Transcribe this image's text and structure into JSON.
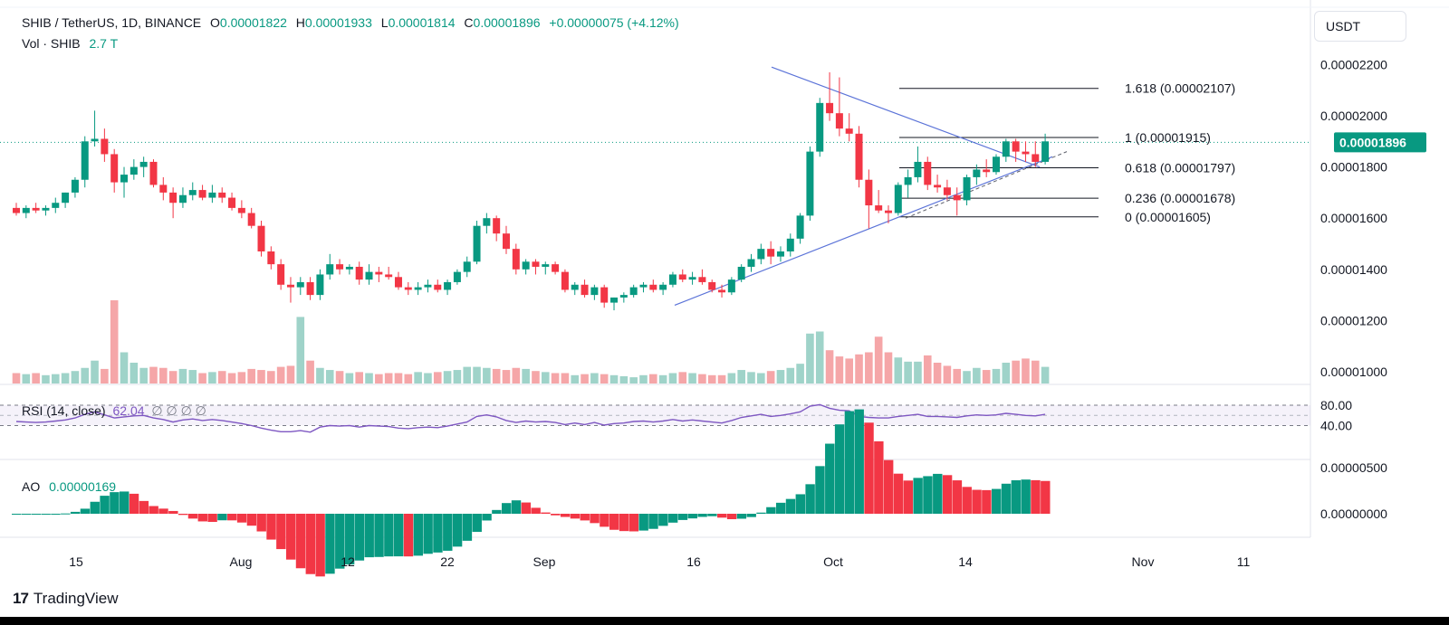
{
  "header": {
    "symbol": "SHIB / TetherUS, 1D, BINANCE",
    "o_label": "O",
    "o_value": "0.00001822",
    "h_label": "H",
    "h_value": "0.00001933",
    "l_label": "L",
    "l_value": "0.00001814",
    "c_label": "C",
    "c_value": "0.00001896",
    "change": "+0.00000075 (+4.12%)"
  },
  "volume_legend": {
    "label": "Vol · SHIB",
    "value": "2.7 T"
  },
  "rsi_legend": {
    "label": "RSI (14, close)",
    "value": "62.04",
    "extras": "∅ ∅ ∅ ∅"
  },
  "ao_legend": {
    "label": "AO",
    "value": "0.00000169"
  },
  "currency_button": "USDT",
  "brand": {
    "logo": "17",
    "name": "TradingView"
  },
  "colors": {
    "up": "#089981",
    "down": "#f23645",
    "up_vol": "#9fd3c9",
    "down_vol": "#f5a6a8",
    "rsi": "#7e57c2",
    "trend": "#5b73d8"
  },
  "chart_data": {
    "type": "candlestick",
    "symbol": "SHIB/USDT",
    "interval": "1D",
    "price_axis": {
      "ticks": [
        "0.00002200",
        "0.00002000",
        "0.00001800",
        "0.00001600",
        "0.00001400",
        "0.00001200",
        "0.00001000"
      ],
      "range": [
        9.5e-06,
        2.27e-05
      ]
    },
    "rsi_axis": {
      "ticks": [
        "80.00",
        "40.00"
      ]
    },
    "ao_axis": {
      "ticks": [
        "0.00000500",
        "0.00000000"
      ]
    },
    "time_axis": [
      "15",
      "Aug",
      "12",
      "22",
      "Sep",
      "16",
      "Oct",
      "14",
      "Nov",
      "11"
    ],
    "last_price_label": "0.00001896",
    "fib_levels": [
      {
        "label": "1.618 (0.00002107)",
        "price": 2.107e-05
      },
      {
        "label": "1 (0.00001915)",
        "price": 1.915e-05
      },
      {
        "label": "0.618 (0.00001797)",
        "price": 1.797e-05
      },
      {
        "label": "0.236 (0.00001678)",
        "price": 1.678e-05
      },
      {
        "label": "0 (0.00001605)",
        "price": 1.605e-05
      }
    ],
    "candles": [
      [
        1.64,
        1.66,
        1.61,
        1.62
      ],
      [
        1.62,
        1.65,
        1.6,
        1.64
      ],
      [
        1.64,
        1.66,
        1.62,
        1.63
      ],
      [
        1.63,
        1.65,
        1.61,
        1.64
      ],
      [
        1.64,
        1.68,
        1.62,
        1.66
      ],
      [
        1.66,
        1.7,
        1.64,
        1.7
      ],
      [
        1.7,
        1.76,
        1.68,
        1.75
      ],
      [
        1.75,
        1.92,
        1.72,
        1.9
      ],
      [
        1.9,
        2.02,
        1.88,
        1.91
      ],
      [
        1.91,
        1.95,
        1.82,
        1.85
      ],
      [
        1.85,
        1.87,
        1.7,
        1.74
      ],
      [
        1.74,
        1.8,
        1.68,
        1.77
      ],
      [
        1.77,
        1.83,
        1.75,
        1.8
      ],
      [
        1.8,
        1.84,
        1.76,
        1.82
      ],
      [
        1.82,
        1.83,
        1.72,
        1.73
      ],
      [
        1.73,
        1.76,
        1.67,
        1.7
      ],
      [
        1.7,
        1.72,
        1.6,
        1.66
      ],
      [
        1.66,
        1.72,
        1.64,
        1.69
      ],
      [
        1.69,
        1.74,
        1.67,
        1.71
      ],
      [
        1.71,
        1.73,
        1.67,
        1.68
      ],
      [
        1.68,
        1.73,
        1.66,
        1.7
      ],
      [
        1.7,
        1.72,
        1.66,
        1.68
      ],
      [
        1.68,
        1.7,
        1.63,
        1.64
      ],
      [
        1.64,
        1.67,
        1.6,
        1.62
      ],
      [
        1.62,
        1.64,
        1.56,
        1.57
      ],
      [
        1.57,
        1.59,
        1.45,
        1.47
      ],
      [
        1.47,
        1.49,
        1.4,
        1.42
      ],
      [
        1.42,
        1.44,
        1.32,
        1.34
      ],
      [
        1.34,
        1.37,
        1.27,
        1.33
      ],
      [
        1.33,
        1.37,
        1.3,
        1.35
      ],
      [
        1.35,
        1.37,
        1.28,
        1.3
      ],
      [
        1.3,
        1.4,
        1.28,
        1.38
      ],
      [
        1.38,
        1.46,
        1.36,
        1.42
      ],
      [
        1.42,
        1.44,
        1.38,
        1.4
      ],
      [
        1.4,
        1.42,
        1.38,
        1.41
      ],
      [
        1.41,
        1.43,
        1.34,
        1.36
      ],
      [
        1.36,
        1.42,
        1.34,
        1.39
      ],
      [
        1.39,
        1.41,
        1.35,
        1.38
      ],
      [
        1.38,
        1.41,
        1.36,
        1.37
      ],
      [
        1.37,
        1.39,
        1.32,
        1.33
      ],
      [
        1.33,
        1.35,
        1.3,
        1.32
      ],
      [
        1.32,
        1.35,
        1.3,
        1.33
      ],
      [
        1.33,
        1.36,
        1.31,
        1.34
      ],
      [
        1.34,
        1.36,
        1.31,
        1.32
      ],
      [
        1.32,
        1.36,
        1.3,
        1.35
      ],
      [
        1.35,
        1.4,
        1.34,
        1.39
      ],
      [
        1.39,
        1.45,
        1.37,
        1.43
      ],
      [
        1.43,
        1.59,
        1.42,
        1.57
      ],
      [
        1.57,
        1.62,
        1.54,
        1.6
      ],
      [
        1.6,
        1.61,
        1.51,
        1.54
      ],
      [
        1.54,
        1.57,
        1.46,
        1.48
      ],
      [
        1.48,
        1.5,
        1.38,
        1.4
      ],
      [
        1.4,
        1.44,
        1.38,
        1.43
      ],
      [
        1.43,
        1.44,
        1.38,
        1.41
      ],
      [
        1.41,
        1.43,
        1.38,
        1.42
      ],
      [
        1.42,
        1.43,
        1.38,
        1.39
      ],
      [
        1.39,
        1.4,
        1.31,
        1.32
      ],
      [
        1.32,
        1.35,
        1.3,
        1.34
      ],
      [
        1.34,
        1.36,
        1.29,
        1.3
      ],
      [
        1.3,
        1.34,
        1.28,
        1.33
      ],
      [
        1.33,
        1.34,
        1.25,
        1.27
      ],
      [
        1.27,
        1.29,
        1.24,
        1.29
      ],
      [
        1.29,
        1.31,
        1.27,
        1.3
      ],
      [
        1.3,
        1.34,
        1.29,
        1.33
      ],
      [
        1.33,
        1.35,
        1.31,
        1.34
      ],
      [
        1.34,
        1.36,
        1.31,
        1.32
      ],
      [
        1.32,
        1.35,
        1.3,
        1.34
      ],
      [
        1.34,
        1.39,
        1.33,
        1.38
      ],
      [
        1.38,
        1.4,
        1.35,
        1.36
      ],
      [
        1.36,
        1.39,
        1.34,
        1.37
      ],
      [
        1.37,
        1.4,
        1.34,
        1.35
      ],
      [
        1.35,
        1.36,
        1.31,
        1.32
      ],
      [
        1.32,
        1.34,
        1.29,
        1.31
      ],
      [
        1.31,
        1.37,
        1.3,
        1.36
      ],
      [
        1.36,
        1.42,
        1.35,
        1.41
      ],
      [
        1.41,
        1.46,
        1.39,
        1.44
      ],
      [
        1.44,
        1.5,
        1.42,
        1.48
      ],
      [
        1.48,
        1.51,
        1.42,
        1.45
      ],
      [
        1.45,
        1.49,
        1.43,
        1.47
      ],
      [
        1.47,
        1.54,
        1.45,
        1.52
      ],
      [
        1.52,
        1.62,
        1.5,
        1.61
      ],
      [
        1.61,
        1.88,
        1.59,
        1.86
      ],
      [
        1.86,
        2.07,
        1.84,
        2.05
      ],
      [
        2.05,
        2.17,
        1.98,
        2.01
      ],
      [
        2.01,
        2.15,
        1.92,
        1.95
      ],
      [
        1.95,
        2.01,
        1.9,
        1.93
      ],
      [
        1.93,
        1.96,
        1.72,
        1.75
      ],
      [
        1.75,
        1.79,
        1.56,
        1.65
      ],
      [
        1.65,
        1.71,
        1.62,
        1.63
      ],
      [
        1.63,
        1.65,
        1.58,
        1.62
      ],
      [
        1.62,
        1.74,
        1.61,
        1.73
      ],
      [
        1.73,
        1.79,
        1.68,
        1.76
      ],
      [
        1.76,
        1.88,
        1.74,
        1.82
      ],
      [
        1.82,
        1.84,
        1.71,
        1.73
      ],
      [
        1.73,
        1.77,
        1.7,
        1.72
      ],
      [
        1.72,
        1.75,
        1.67,
        1.69
      ],
      [
        1.69,
        1.72,
        1.61,
        1.67
      ],
      [
        1.67,
        1.77,
        1.65,
        1.76
      ],
      [
        1.76,
        1.81,
        1.73,
        1.79
      ],
      [
        1.79,
        1.83,
        1.76,
        1.78
      ],
      [
        1.78,
        1.85,
        1.77,
        1.84
      ],
      [
        1.84,
        1.91,
        1.82,
        1.9
      ],
      [
        1.9,
        1.91,
        1.82,
        1.86
      ],
      [
        1.86,
        1.9,
        1.82,
        1.85
      ],
      [
        1.85,
        1.9,
        1.8,
        1.82
      ],
      [
        1.82,
        1.93,
        1.81,
        1.9
      ]
    ],
    "volume": [
      1.0,
      0.9,
      1.0,
      0.8,
      0.9,
      1.0,
      1.2,
      1.5,
      2.2,
      1.4,
      8.0,
      3.0,
      2.0,
      1.5,
      1.6,
      1.5,
      1.2,
      1.4,
      1.3,
      1.0,
      1.1,
      1.2,
      1.0,
      1.1,
      1.4,
      1.3,
      1.2,
      1.6,
      1.7,
      6.4,
      2.2,
      1.5,
      1.3,
      1.2,
      1.0,
      1.1,
      1.0,
      0.9,
      1.0,
      1.0,
      0.9,
      1.1,
      1.0,
      1.1,
      1.2,
      1.3,
      1.6,
      1.6,
      1.5,
      1.4,
      1.3,
      1.5,
      1.4,
      1.2,
      1.1,
      1.0,
      1.0,
      0.8,
      0.9,
      1.0,
      0.9,
      0.8,
      0.7,
      0.6,
      0.8,
      0.9,
      0.8,
      1.0,
      1.1,
      1.0,
      0.9,
      0.8,
      0.8,
      1.0,
      1.3,
      1.1,
      1.0,
      1.2,
      1.3,
      1.5,
      1.9,
      4.8,
      5.0,
      3.2,
      2.6,
      2.4,
      2.8,
      3.0,
      4.5,
      3.0,
      2.5,
      2.1,
      2.1,
      2.7,
      2.0,
      1.7,
      1.4,
      1.2,
      1.5,
      1.3,
      1.4,
      2.0,
      2.2,
      2.4,
      2.2,
      1.6
    ],
    "rsi": [
      48,
      47,
      46,
      47,
      49,
      51,
      55,
      62,
      67,
      61,
      55,
      57,
      59,
      60,
      55,
      52,
      47,
      51,
      53,
      50,
      52,
      50,
      47,
      44,
      40,
      35,
      31,
      28,
      28,
      30,
      27,
      37,
      40,
      39,
      40,
      37,
      40,
      39,
      38,
      35,
      34,
      36,
      37,
      36,
      39,
      43,
      47,
      58,
      61,
      57,
      50,
      46,
      49,
      47,
      48,
      46,
      42,
      45,
      42,
      46,
      41,
      44,
      45,
      48,
      49,
      47,
      49,
      52,
      49,
      51,
      49,
      47,
      45,
      50,
      56,
      59,
      62,
      58,
      60,
      63,
      67,
      78,
      81,
      74,
      70,
      69,
      58,
      56,
      55,
      55,
      58,
      60,
      62,
      58,
      58,
      57,
      56,
      59,
      61,
      60,
      61,
      64,
      62,
      60,
      59,
      62
    ]
  }
}
